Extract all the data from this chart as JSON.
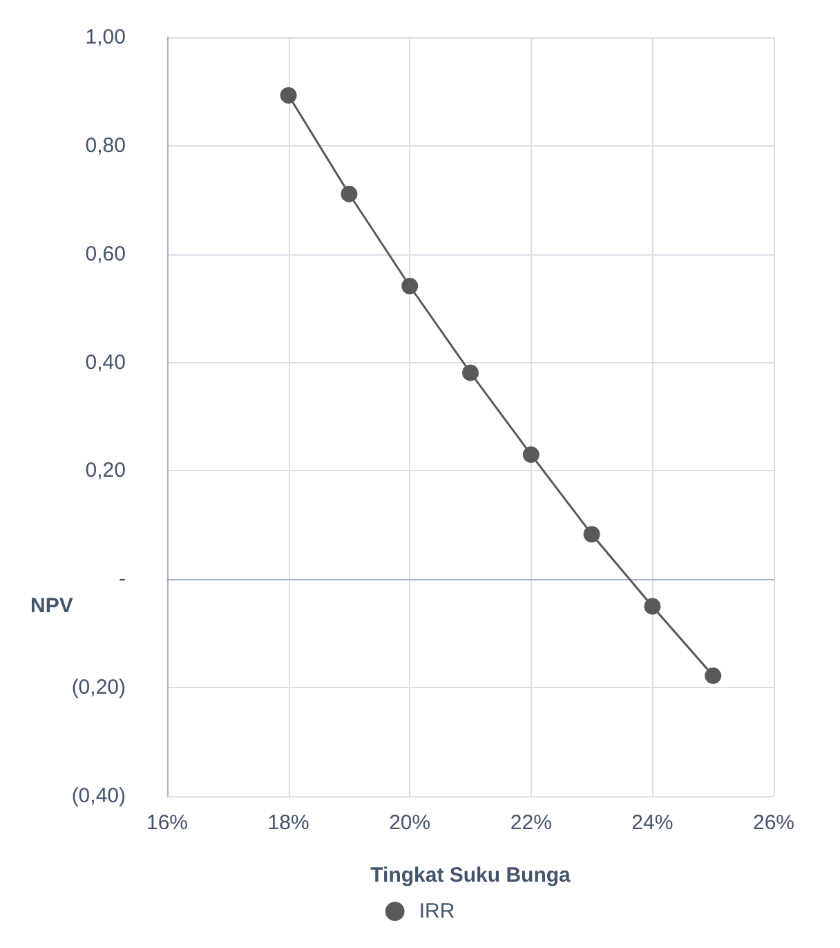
{
  "chart_data": {
    "type": "line",
    "xlabel": "Tingkat Suku Bunga",
    "ylabel": "NPV",
    "x": [
      18,
      19,
      20,
      21,
      22,
      23,
      24,
      25
    ],
    "series": [
      {
        "name": "IRR",
        "color": "#595959",
        "values": [
          0.893,
          0.711,
          0.541,
          0.381,
          0.23,
          0.083,
          -0.05,
          -0.178
        ]
      }
    ],
    "xlim": [
      16,
      26
    ],
    "xticks": [
      {
        "value": 16,
        "label": "16%"
      },
      {
        "value": 18,
        "label": "18%"
      },
      {
        "value": 20,
        "label": "20%"
      },
      {
        "value": 22,
        "label": "22%"
      },
      {
        "value": 24,
        "label": "24%"
      },
      {
        "value": 26,
        "label": "26%"
      }
    ],
    "ylim": [
      -0.4,
      1
    ],
    "yticks": [
      {
        "value": -0.4,
        "label": "(0,40)"
      },
      {
        "value": -0.2,
        "label": "(0,20)"
      },
      {
        "value": 0,
        "label": "-"
      },
      {
        "value": 0.2,
        "label": "0,20"
      },
      {
        "value": 0.4,
        "label": "0,40"
      },
      {
        "value": 0.6,
        "label": "0,60"
      },
      {
        "value": 0.8,
        "label": "0,80"
      },
      {
        "value": 1,
        "label": "1,00"
      }
    ],
    "grid": true,
    "legend": "bottom",
    "marker": "circle",
    "line_style": "solid"
  }
}
